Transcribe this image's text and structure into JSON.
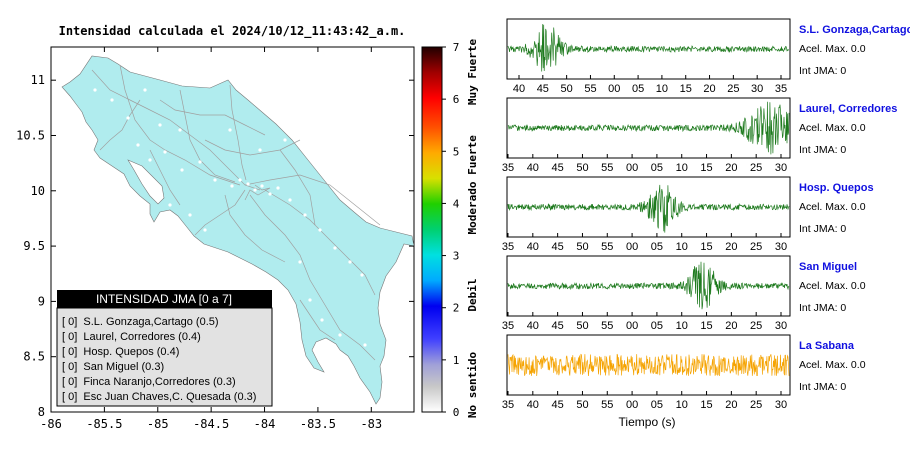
{
  "map": {
    "title": "Intensidad calculada el 2024/10/12_11:43:42_a.m.",
    "x_ticks": [
      "-86",
      "-85.5",
      "-85",
      "-84.5",
      "-84",
      "-83.5",
      "-83"
    ],
    "y_ticks": [
      "11",
      "10.5",
      "10",
      "9.5",
      "9",
      "8.5",
      "8"
    ],
    "land_color": "#b0ecee",
    "road_color": "#a0a0a0"
  },
  "colorbar": {
    "tick_labels": [
      "0",
      "1",
      "2",
      "3",
      "4",
      "5",
      "6",
      "7"
    ],
    "category_labels": [
      "No sentido",
      "Debil",
      "Moderado",
      "Fuerte",
      "Muy Fuerte"
    ]
  },
  "legend": {
    "header": "INTENSIDAD JMA [0 a 7]",
    "rows": [
      "[ 0]  S.L. Gonzaga,Cartago (0.5)",
      "[ 0]  Laurel, Corredores (0.4)",
      "[ 0]  Hosp. Quepos (0.4)",
      "[ 0]  San Miguel (0.3)",
      "[ 0]  Finca Naranjo,Corredores (0.3)",
      "[ 0]  Esc Juan Chaves,C. Quesada (0.3)"
    ]
  },
  "waveforms": {
    "xlabel": "Tiempo (s)",
    "stations": [
      {
        "name": "S.L. Gonzaga,Cartago",
        "acel": "Acel. Max. 0.0",
        "int": "Int JMA: 0",
        "color": "#1e7a1e",
        "ticks": [
          "40",
          "45",
          "50",
          "55",
          "00",
          "05",
          "10",
          "15",
          "20",
          "25",
          "30",
          "35"
        ],
        "burst": 0.14
      },
      {
        "name": "Laurel, Corredores",
        "acel": "Acel. Max. 0.0",
        "int": "Int JMA: 0",
        "color": "#1e7a1e",
        "ticks": [
          "35",
          "40",
          "45",
          "50",
          "55",
          "00",
          "05",
          "10",
          "15",
          "20",
          "25",
          "30"
        ],
        "burst": 0.93
      },
      {
        "name": "Hosp. Quepos",
        "acel": "Acel. Max. 0.0",
        "int": "Int JMA: 0",
        "color": "#1e7a1e",
        "ticks": [
          "35",
          "40",
          "45",
          "50",
          "55",
          "00",
          "05",
          "10",
          "15",
          "20",
          "25",
          "30"
        ],
        "burst": 0.55
      },
      {
        "name": "San Miguel",
        "acel": "Acel. Max. 0.0",
        "int": "Int JMA: 0",
        "color": "#1e7a1e",
        "ticks": [
          "35",
          "40",
          "45",
          "50",
          "55",
          "00",
          "05",
          "10",
          "15",
          "20",
          "25",
          "30"
        ],
        "burst": 0.69
      },
      {
        "name": "La Sabana",
        "acel": "Acel. Max. 0.0",
        "int": "Int JMA: 0",
        "color": "#f5a300",
        "ticks": [
          "35",
          "40",
          "45",
          "50",
          "55",
          "00",
          "05",
          "10",
          "15",
          "20",
          "25",
          "30"
        ],
        "burst": 0.75
      }
    ]
  },
  "chart_data": [
    {
      "type": "scatter",
      "title": "Intensidad calculada el 2024/10/12_11:43:42_a.m.",
      "xlim": [
        -86,
        -82.6
      ],
      "ylim": [
        8,
        11.3
      ],
      "x_ticks": [
        -86,
        -85.5,
        -85,
        -84.5,
        -84,
        -83.5,
        -83
      ],
      "y_ticks": [
        8,
        8.5,
        9,
        9.5,
        10,
        10.5,
        11
      ]
    },
    {
      "type": "heatmap",
      "colorbar_range": [
        0,
        7
      ],
      "categories": [
        "No sentido",
        "Debil",
        "Moderado",
        "Fuerte",
        "Muy Fuerte"
      ]
    },
    {
      "type": "line",
      "xlabel": "Tiempo (s)",
      "series": [
        {
          "name": "S.L. Gonzaga,Cartago",
          "acel_max": 0.0,
          "int_jma": 0
        },
        {
          "name": "Laurel, Corredores",
          "acel_max": 0.0,
          "int_jma": 0
        },
        {
          "name": "Hosp. Quepos",
          "acel_max": 0.0,
          "int_jma": 0
        },
        {
          "name": "San Miguel",
          "acel_max": 0.0,
          "int_jma": 0
        },
        {
          "name": "La Sabana",
          "acel_max": 0.0,
          "int_jma": 0
        }
      ]
    }
  ]
}
